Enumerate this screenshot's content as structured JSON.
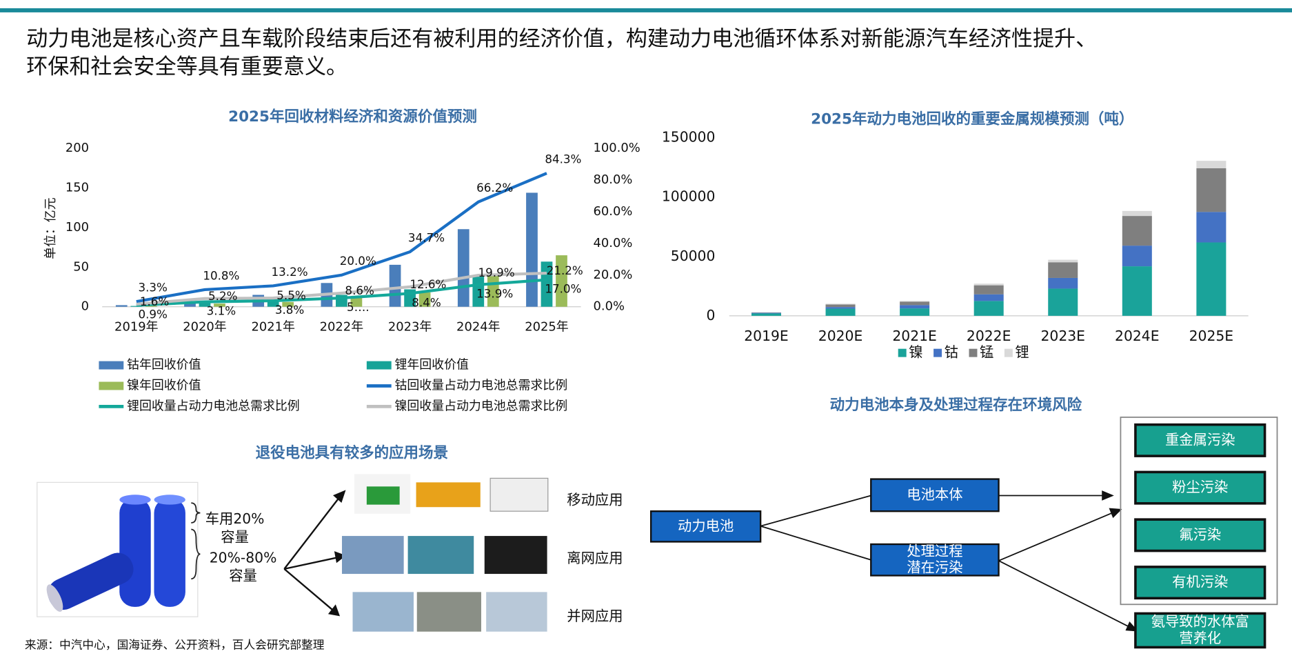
{
  "header": {
    "title": [
      "动力电池是核心资产且车载阶段结束后还有被利用的经济价值，构建动力电池循环体系对新能源汽车经济性提升、",
      "环保和社会安全等具有重要意义。"
    ]
  },
  "chart_data": [
    {
      "type": "combo",
      "title": "2025年回收材料经济和资源价值预测",
      "y_label": "单位：亿元",
      "categories": [
        "2019年",
        "2020年",
        "2021年",
        "2022年",
        "2023年",
        "2024年",
        "2025年"
      ],
      "ylim": [
        0,
        200
      ],
      "yticks": [
        0,
        50,
        100,
        150,
        200
      ],
      "y2lim": [
        0,
        100
      ],
      "y2ticks": [
        {
          "value": 0,
          "label": "0.0%"
        },
        {
          "value": 20,
          "label": "20.0%"
        },
        {
          "value": 40,
          "label": "40.0%"
        },
        {
          "value": 60,
          "label": "60.0%"
        },
        {
          "value": 80,
          "label": "80.0%"
        },
        {
          "value": 100,
          "label": "100.0%"
        }
      ],
      "legend": "bottom",
      "series": [
        {
          "name": "钴年回收价值",
          "kind": "bar",
          "color": "#4a7ebb",
          "values": [
            2,
            7,
            15,
            30,
            53,
            98,
            144
          ]
        },
        {
          "name": "锂年回收价值",
          "kind": "bar",
          "color": "#17a398",
          "values": [
            1,
            5,
            8,
            15,
            22,
            38,
            57
          ]
        },
        {
          "name": "镍年回收价值",
          "kind": "bar",
          "color": "#9bbb59",
          "values": [
            1,
            4,
            6,
            12,
            18,
            40,
            65
          ]
        },
        {
          "name": "钴回收量占动力电池总需求比例",
          "kind": "line",
          "axis": "y2",
          "color": "#1a6fc4",
          "values": [
            3.3,
            10.8,
            13.2,
            20.0,
            34.7,
            66.2,
            84.3
          ],
          "value_labels": [
            "3.3%",
            "10.8%",
            "13.2%",
            "20.0%",
            "34.7%",
            "66.2%",
            "84.3%"
          ]
        },
        {
          "name": "锂回收量占动力电池总需求比例",
          "kind": "line",
          "axis": "y2",
          "color": "#14a89a",
          "values": [
            0.9,
            3.1,
            3.8,
            5.5,
            8.4,
            13.9,
            17.0
          ],
          "value_labels": [
            "0.9%",
            "3.1%",
            "3.8%",
            "5….",
            "8.4%",
            "13.9%",
            "17.0%"
          ]
        },
        {
          "name": "镍回收量占动力电池总需求比例",
          "kind": "line",
          "axis": "y2",
          "color": "#c0c0c0",
          "values": [
            1.6,
            5.2,
            5.5,
            8.6,
            12.6,
            19.9,
            21.2
          ],
          "value_labels": [
            "1.6%",
            "5.2%",
            "5.5%",
            "8.6%",
            "12.6%",
            "19.9%",
            "21.2%"
          ]
        }
      ]
    },
    {
      "type": "stacked_bar",
      "title": "2025年动力电池回收的重要金属规模预测（吨）",
      "categories": [
        "2019E",
        "2020E",
        "2021E",
        "2022E",
        "2023E",
        "2024E",
        "2025E"
      ],
      "ylim": [
        0,
        150000
      ],
      "yticks": [
        0,
        50000,
        100000,
        150000
      ],
      "legend": "bottom",
      "series": [
        {
          "name": "镍",
          "color": "#1aa39a",
          "values": [
            2000,
            6000,
            6250,
            12500,
            22900,
            41700,
            61800
          ]
        },
        {
          "name": "钴",
          "color": "#4472c4",
          "values": [
            500,
            1400,
            2800,
            5600,
            9000,
            17400,
            25700
          ]
        },
        {
          "name": "锰",
          "color": "#7f7f7f",
          "values": [
            300,
            2100,
            2800,
            7600,
            13200,
            25000,
            36800
          ]
        },
        {
          "name": "锂",
          "color": "#d9d9d9",
          "values": [
            100,
            700,
            700,
            1400,
            2100,
            4200,
            6250
          ]
        }
      ]
    }
  ],
  "scenarios": {
    "title": "退役电池具有较多的应用场景",
    "capacity_labels": [
      [
        "车用20%",
        "容量"
      ],
      [
        "20%-80%",
        "容量"
      ]
    ],
    "applications": [
      "移动应用",
      "离网应用",
      "并网应用"
    ]
  },
  "risk_diagram": {
    "title": "动力电池本身及处理过程存在环境风险",
    "source_node": "动力电池",
    "middle_nodes": [
      [
        "电池本体"
      ],
      [
        "处理过程",
        "潜在污染"
      ]
    ],
    "risks": [
      [
        "重金属污染"
      ],
      [
        "粉尘污染"
      ],
      [
        "氟污染"
      ],
      [
        "有机污染"
      ],
      [
        "氨导致的水体富",
        "营养化"
      ]
    ]
  },
  "source": "来源：中汽中心，国海证券、公开资料，百人会研究部整理"
}
